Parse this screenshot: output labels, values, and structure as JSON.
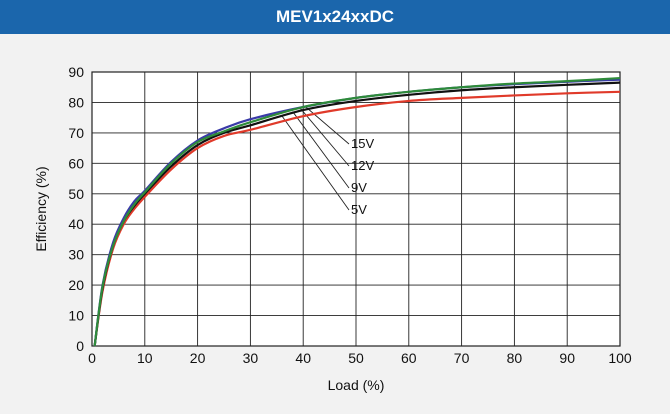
{
  "title": "MEV1x24xxDC",
  "colors": {
    "title_bar": "#1b66ac",
    "background": "#f2f2f2",
    "plot_background": "#ffffff",
    "grid": "#222222"
  },
  "chart_data": {
    "type": "line",
    "title": "MEV1x24xxDC",
    "xlabel": "Load  (%)",
    "ylabel": "Efficiency  (%)",
    "xlim": [
      0,
      100
    ],
    "ylim": [
      0,
      90
    ],
    "xticks": [
      0,
      10,
      20,
      30,
      40,
      50,
      60,
      70,
      80,
      90,
      100
    ],
    "yticks": [
      0,
      10,
      20,
      30,
      40,
      50,
      60,
      70,
      80,
      90
    ],
    "grid": true,
    "series": [
      {
        "name": "5V",
        "color": "#e03a2a",
        "x": [
          0.5,
          2,
          4,
          6,
          8,
          10,
          15,
          20,
          25,
          30,
          40,
          50,
          60,
          70,
          80,
          90,
          100
        ],
        "y": [
          0,
          18,
          32,
          40,
          45,
          49,
          58,
          65,
          69,
          71,
          75.5,
          78.5,
          80.5,
          81.5,
          82.3,
          83,
          83.5
        ]
      },
      {
        "name": "9V",
        "color": "#111111",
        "x": [
          0.5,
          2,
          4,
          6,
          8,
          10,
          15,
          20,
          25,
          30,
          40,
          50,
          60,
          70,
          80,
          90,
          100
        ],
        "y": [
          0,
          19,
          33,
          41,
          46,
          50,
          59,
          66,
          70,
          72.5,
          77.5,
          80.5,
          82.5,
          84,
          85,
          85.8,
          86.5
        ]
      },
      {
        "name": "12V",
        "color": "#3a3aa8",
        "x": [
          0.5,
          2,
          4,
          6,
          8,
          10,
          15,
          20,
          25,
          30,
          40,
          50,
          60,
          70,
          80,
          90,
          100
        ],
        "y": [
          0,
          20,
          34,
          42,
          47.5,
          51,
          60.5,
          67.5,
          71.5,
          74.5,
          78.5,
          81.5,
          83.5,
          85,
          86,
          86.8,
          87.5
        ]
      },
      {
        "name": "15V",
        "color": "#2e8b3a",
        "x": [
          0.5,
          2,
          4,
          6,
          8,
          10,
          15,
          20,
          25,
          30,
          40,
          50,
          60,
          70,
          80,
          90,
          100
        ],
        "y": [
          0,
          19.5,
          33,
          41,
          46.5,
          50.5,
          60,
          67,
          70.5,
          73.5,
          78.5,
          81.5,
          83.5,
          85,
          86.2,
          87,
          88
        ]
      }
    ],
    "annotations": [
      "15V",
      "12V",
      "9V",
      "5V"
    ]
  }
}
